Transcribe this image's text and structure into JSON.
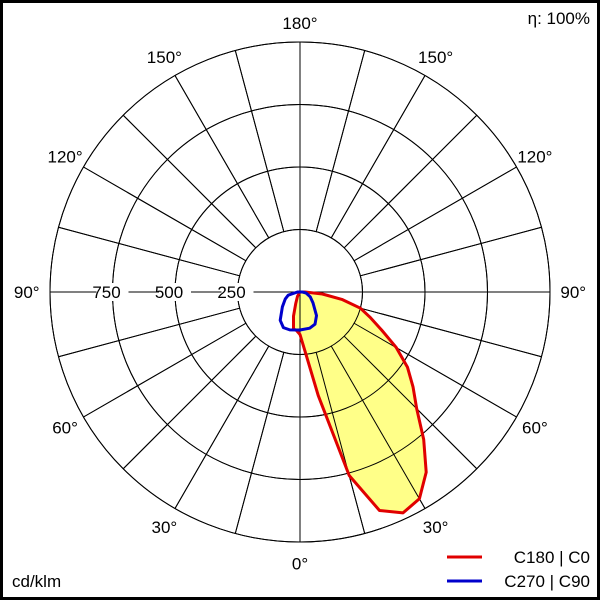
{
  "chart_data": {
    "type": "polar",
    "unit_label": "cd/klm",
    "efficiency_label": "η: 100%",
    "radial_ticks": [
      250,
      500,
      750,
      1000
    ],
    "radial_tick_labels": [
      "250",
      "500",
      "750"
    ],
    "rmax": 1000,
    "angle_step": 15,
    "angle_labels": [
      {
        "angle": 180,
        "text": "180°",
        "side": "center"
      },
      {
        "angle": 150,
        "text": "150°",
        "side": "left"
      },
      {
        "angle": 150,
        "text": "150°",
        "side": "right"
      },
      {
        "angle": 120,
        "text": "120°",
        "side": "left"
      },
      {
        "angle": 120,
        "text": "120°",
        "side": "right"
      },
      {
        "angle": 90,
        "text": "90°",
        "side": "left"
      },
      {
        "angle": 90,
        "text": "90°",
        "side": "right"
      },
      {
        "angle": 60,
        "text": "60°",
        "side": "left"
      },
      {
        "angle": 60,
        "text": "60°",
        "side": "right"
      },
      {
        "angle": 30,
        "text": "30°",
        "side": "left"
      },
      {
        "angle": 30,
        "text": "30°",
        "side": "right"
      },
      {
        "angle": 0,
        "text": "0°",
        "side": "center"
      }
    ],
    "series": [
      {
        "name": "C180 | C0",
        "color": "#e00000",
        "fill": "#ffff88",
        "right_plane": [
          [
            0,
            170
          ],
          [
            5,
            240
          ],
          [
            10,
            420
          ],
          [
            15,
            760
          ],
          [
            20,
            930
          ],
          [
            25,
            975
          ],
          [
            30,
            955
          ],
          [
            35,
            880
          ],
          [
            40,
            770
          ],
          [
            45,
            660
          ],
          [
            50,
            590
          ],
          [
            55,
            525
          ],
          [
            60,
            445
          ],
          [
            65,
            360
          ],
          [
            70,
            300
          ],
          [
            75,
            250
          ],
          [
            80,
            170
          ],
          [
            85,
            90
          ],
          [
            90,
            20
          ]
        ],
        "left_plane": [
          [
            0,
            170
          ],
          [
            5,
            155
          ],
          [
            10,
            150
          ],
          [
            15,
            100
          ],
          [
            20,
            50
          ],
          [
            30,
            20
          ],
          [
            90,
            0
          ]
        ]
      },
      {
        "name": "C270 | C90",
        "color": "#0000cc",
        "right_plane": [
          [
            0,
            152
          ],
          [
            15,
            150
          ],
          [
            25,
            142
          ],
          [
            35,
            115
          ],
          [
            50,
            68
          ],
          [
            65,
            45
          ],
          [
            80,
            25
          ],
          [
            90,
            10
          ]
        ],
        "left_plane": [
          [
            0,
            152
          ],
          [
            15,
            157
          ],
          [
            25,
            157
          ],
          [
            35,
            138
          ],
          [
            50,
            92
          ],
          [
            65,
            65
          ],
          [
            75,
            49
          ],
          [
            90,
            10
          ]
        ]
      }
    ]
  }
}
